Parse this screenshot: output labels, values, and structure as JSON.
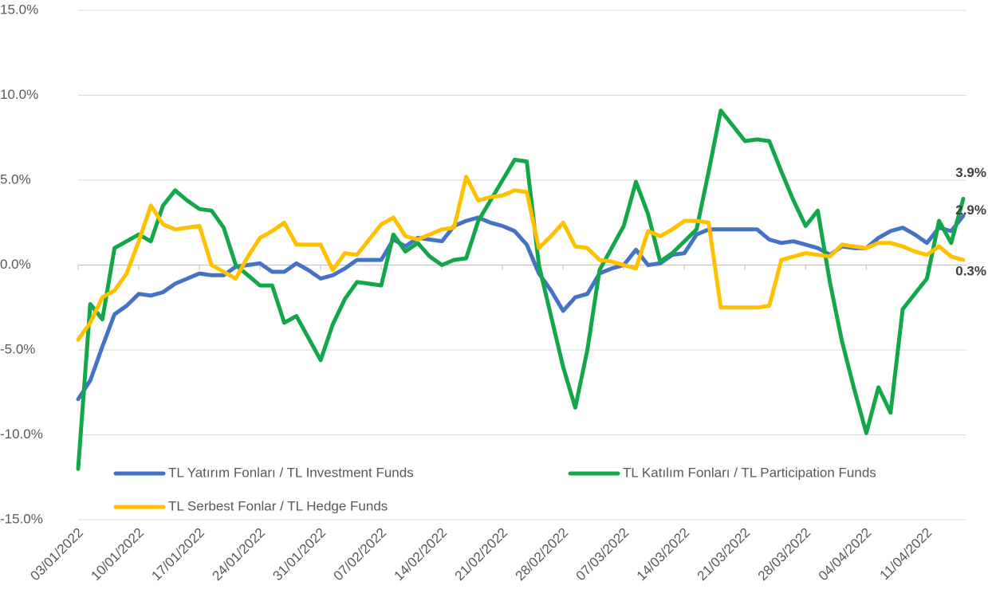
{
  "chart_data": {
    "type": "line",
    "categories": [
      "03/01/2022",
      null,
      null,
      null,
      null,
      "10/01/2022",
      null,
      null,
      null,
      null,
      "17/01/2022",
      null,
      null,
      null,
      null,
      "24/01/2022",
      null,
      null,
      null,
      null,
      "31/01/2022",
      null,
      null,
      null,
      null,
      "07/02/2022",
      null,
      null,
      null,
      null,
      "14/02/2022",
      null,
      null,
      null,
      null,
      "21/02/2022",
      null,
      null,
      null,
      null,
      "28/02/2022",
      null,
      null,
      null,
      null,
      "07/03/2022",
      null,
      null,
      null,
      null,
      "14/03/2022",
      null,
      null,
      null,
      null,
      "21/03/2022",
      null,
      null,
      null,
      null,
      "28/03/2022",
      null,
      null,
      null,
      null,
      "04/04/2022",
      null,
      null,
      null,
      null,
      "11/04/2022",
      null,
      null,
      null
    ],
    "series": [
      {
        "name": "TL Yatırım Fonları / TL Investment Funds",
        "color": "#4472c4",
        "values": [
          -7.9,
          -6.8,
          -4.8,
          -2.9,
          -2.4,
          -1.7,
          -1.8,
          -1.6,
          -1.1,
          -0.8,
          -0.5,
          -0.6,
          -0.6,
          -0.1,
          0.0,
          0.1,
          -0.4,
          -0.4,
          0.1,
          -0.3,
          -0.8,
          -0.6,
          -0.2,
          0.3,
          0.3,
          0.3,
          1.5,
          1.1,
          1.6,
          1.5,
          1.4,
          2.3,
          2.6,
          2.8,
          2.5,
          2.3,
          2.0,
          1.2,
          -0.5,
          -1.5,
          -2.7,
          -1.9,
          -1.7,
          -0.5,
          -0.2,
          0.0,
          0.9,
          0.0,
          0.1,
          0.6,
          0.7,
          1.8,
          2.1,
          2.1,
          2.1,
          2.1,
          2.1,
          1.5,
          1.3,
          1.4,
          1.2,
          1.0,
          0.6,
          1.1,
          1.0,
          1.0,
          1.6,
          2.0,
          2.2,
          1.8,
          1.3,
          2.2,
          2.0,
          2.9
        ],
        "value_labels": [
          null,
          null,
          null,
          null,
          null,
          null,
          null,
          null,
          null,
          null,
          null,
          null,
          null,
          null,
          null,
          null,
          null,
          null,
          null,
          null,
          null,
          null,
          null,
          null,
          null,
          null,
          null,
          null,
          null,
          null,
          null,
          null,
          null,
          null,
          null,
          null,
          null,
          null,
          null,
          null,
          null,
          null,
          null,
          null,
          null,
          null,
          null,
          null,
          null,
          null,
          null,
          null,
          null,
          null,
          null,
          null,
          null,
          null,
          null,
          null,
          null,
          null,
          null,
          null,
          null,
          null,
          null,
          null,
          null,
          null,
          null,
          null,
          null,
          "2.9%"
        ]
      },
      {
        "name": "TL Katılım Fonları / TL Participation Funds",
        "color": "#12a84a",
        "values": [
          -12.0,
          -2.3,
          -3.2,
          1.0,
          1.4,
          1.8,
          1.4,
          3.5,
          4.4,
          3.8,
          3.3,
          3.2,
          2.2,
          0.0,
          -0.6,
          -1.2,
          -1.2,
          -3.4,
          -3.0,
          -4.3,
          -5.6,
          -3.5,
          -2.0,
          -1.0,
          -1.1,
          -1.2,
          1.8,
          0.8,
          1.3,
          0.5,
          0.0,
          0.3,
          0.4,
          2.6,
          3.8,
          5.0,
          6.2,
          6.1,
          0.0,
          -3.0,
          -6.0,
          -8.4,
          -5.0,
          -0.3,
          1.0,
          2.3,
          4.9,
          3.0,
          0.2,
          0.7,
          1.4,
          2.1,
          5.5,
          9.1,
          8.2,
          7.3,
          7.4,
          7.3,
          5.5,
          3.8,
          2.3,
          3.2,
          -1.0,
          -4.5,
          -7.3,
          -9.9,
          -7.2,
          -8.7,
          -2.6,
          -1.7,
          -0.8,
          2.6,
          1.3,
          3.9
        ],
        "value_labels": [
          null,
          null,
          null,
          null,
          null,
          null,
          null,
          null,
          null,
          null,
          null,
          null,
          null,
          null,
          null,
          null,
          null,
          null,
          null,
          null,
          null,
          null,
          null,
          null,
          null,
          null,
          null,
          null,
          null,
          null,
          null,
          null,
          null,
          null,
          null,
          null,
          null,
          null,
          null,
          null,
          null,
          null,
          null,
          null,
          null,
          null,
          null,
          null,
          null,
          null,
          null,
          null,
          null,
          null,
          null,
          null,
          null,
          null,
          null,
          null,
          null,
          null,
          null,
          null,
          null,
          null,
          null,
          null,
          null,
          null,
          null,
          null,
          null,
          "3.9%"
        ]
      },
      {
        "name": "TL Serbest Fonlar / TL Hedge Funds",
        "color": "#ffc000",
        "values": [
          -4.4,
          -3.4,
          -1.9,
          -1.5,
          -0.5,
          1.4,
          3.5,
          2.4,
          2.1,
          2.2,
          2.3,
          0.0,
          -0.4,
          -0.8,
          0.5,
          1.6,
          2.0,
          2.5,
          1.2,
          1.2,
          1.2,
          -0.3,
          0.7,
          0.6,
          1.5,
          2.4,
          2.8,
          1.7,
          1.5,
          1.8,
          2.1,
          2.2,
          5.2,
          3.8,
          4.0,
          4.1,
          4.4,
          4.3,
          1.0,
          1.7,
          2.5,
          1.1,
          1.0,
          0.3,
          0.2,
          0.0,
          -0.2,
          2.0,
          1.7,
          2.1,
          2.6,
          2.6,
          2.5,
          -2.5,
          -2.5,
          -2.5,
          -2.5,
          -2.4,
          0.3,
          0.5,
          0.7,
          0.6,
          0.5,
          1.2,
          1.1,
          1.0,
          1.3,
          1.3,
          1.1,
          0.8,
          0.6,
          1.1,
          0.5,
          0.3
        ],
        "value_labels": [
          null,
          null,
          null,
          null,
          null,
          null,
          null,
          null,
          null,
          null,
          null,
          null,
          null,
          null,
          null,
          null,
          null,
          null,
          null,
          null,
          null,
          null,
          null,
          null,
          null,
          null,
          null,
          null,
          null,
          null,
          null,
          null,
          null,
          null,
          null,
          null,
          null,
          null,
          null,
          null,
          null,
          null,
          null,
          null,
          null,
          null,
          null,
          null,
          null,
          null,
          null,
          null,
          null,
          null,
          null,
          null,
          null,
          null,
          null,
          null,
          null,
          null,
          null,
          null,
          null,
          null,
          null,
          null,
          null,
          null,
          null,
          null,
          null,
          "0.3%"
        ]
      }
    ],
    "ylim": [
      -15,
      15
    ],
    "yticks": [
      {
        "value": -15,
        "label": "-15.0%"
      },
      {
        "value": -10,
        "label": "-10.0%"
      },
      {
        "value": -5,
        "label": "-5.0%"
      },
      {
        "value": 0,
        "label": "0.0%"
      },
      {
        "value": 5,
        "label": "5.0%"
      },
      {
        "value": 10,
        "label": "10.0%"
      },
      {
        "value": 15,
        "label": "15.0%"
      }
    ],
    "grid": true,
    "legend": "bottom-left"
  }
}
